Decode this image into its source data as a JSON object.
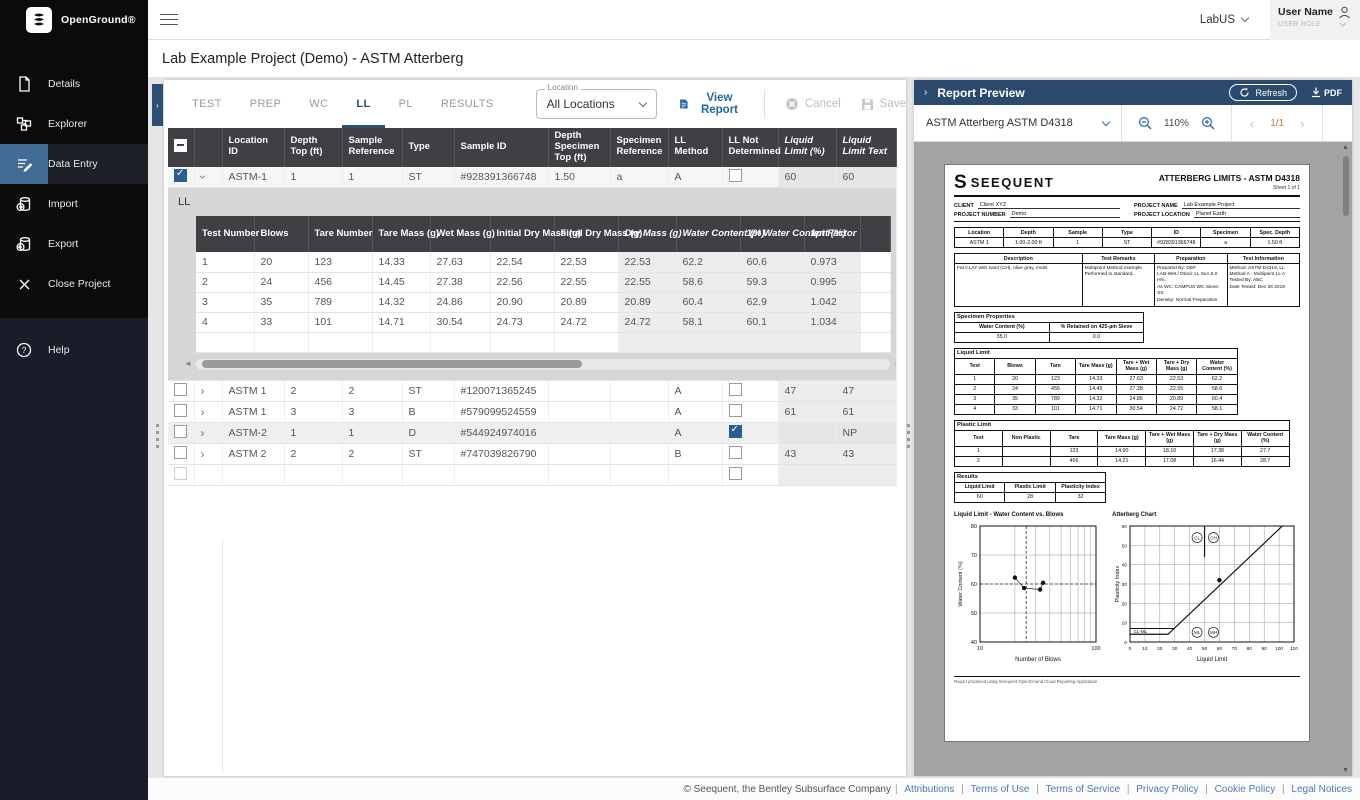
{
  "colors": {
    "sidebar": "#0b0b0c",
    "accent": "#2c4a6e",
    "selection": "#2e5f8c",
    "active_icon_bg": "#426b94",
    "link": "#4a7ab5",
    "header_gray": "#3f3f44"
  },
  "topbar": {
    "brand": "OpenGround®",
    "lab": "LabUS",
    "user_name": "User Name",
    "user_role": "USER ROLE"
  },
  "title": "Lab Example Project (Demo) - ASTM Atterberg",
  "sidebar": {
    "items": [
      {
        "label": "Details"
      },
      {
        "label": "Explorer"
      },
      {
        "label": "Data Entry"
      },
      {
        "label": "Import"
      },
      {
        "label": "Export"
      },
      {
        "label": "Close Project"
      }
    ],
    "help": "Help"
  },
  "tabs": {
    "items": [
      "TEST",
      "PREP",
      "WC",
      "LL",
      "PL",
      "RESULTS"
    ],
    "active": "LL"
  },
  "toolbar": {
    "location_label": "Location",
    "location_value": "All Locations",
    "view_report": "View Report",
    "cancel": "Cancel",
    "save": "Save"
  },
  "grid": {
    "columns": [
      {
        "label": "Location ID"
      },
      {
        "label": "Depth Top (ft)"
      },
      {
        "label": "Sample Reference"
      },
      {
        "label": "Type"
      },
      {
        "label": "Sample ID"
      },
      {
        "label": "Depth Specimen Top (ft)"
      },
      {
        "label": "Specimen Reference"
      },
      {
        "label": "LL Method"
      },
      {
        "label": "LL Not Determined"
      },
      {
        "label": "Liquid Limit (%)",
        "calc": true
      },
      {
        "label": "Liquid Limit Text",
        "calc": true
      }
    ],
    "rows": [
      {
        "selected": true,
        "expander": "open",
        "ll_nd": false,
        "values": [
          "ASTM-1",
          "1",
          "1",
          "ST",
          "#928391366748",
          "1.50",
          "a",
          "A",
          "60",
          "60"
        ]
      },
      {
        "selected": false,
        "expander": "closed",
        "ll_nd": false,
        "values": [
          "ASTM 1",
          "2",
          "2",
          "ST",
          "#120071365245",
          "",
          "",
          "A",
          "47",
          "47"
        ]
      },
      {
        "selected": false,
        "expander": "closed",
        "ll_nd": false,
        "values": [
          "ASTM 1",
          "3",
          "3",
          "B",
          "#579099524559",
          "",
          "",
          "A",
          "61",
          "61"
        ]
      },
      {
        "selected": false,
        "expander": "closed",
        "shade": true,
        "ll_nd": true,
        "values": [
          "ASTM-2",
          "1",
          "1",
          "D",
          "#544924974016",
          "",
          "",
          "A",
          "",
          "NP"
        ]
      },
      {
        "selected": false,
        "expander": "closed",
        "ll_nd": false,
        "values": [
          "ASTM 2",
          "2",
          "2",
          "ST",
          "#747039826790",
          "",
          "",
          "B",
          "43",
          "43"
        ]
      },
      {
        "selected": false,
        "expander": null,
        "ll_nd": false,
        "empty": true,
        "values": [
          "",
          "",
          "",
          "",
          "",
          "",
          "",
          "",
          "",
          ""
        ]
      }
    ]
  },
  "subgrid": {
    "title": "LL",
    "columns": [
      {
        "label": "Test Number"
      },
      {
        "label": "Blows"
      },
      {
        "label": "Tare Number"
      },
      {
        "label": "Tare Mass (g)"
      },
      {
        "label": "Wet Mass (g)"
      },
      {
        "label": "Initial Dry Mass (g)"
      },
      {
        "label": "Final Dry Mass (g)"
      },
      {
        "label": "Dry Mass (g)",
        "calc": true
      },
      {
        "label": "Water Content (%)",
        "calc": true
      },
      {
        "label": "1pt Water Content (%)",
        "calc": true
      },
      {
        "label": "1pt Factor",
        "calc": true
      }
    ],
    "rows": [
      [
        "1",
        "20",
        "123",
        "14.33",
        "27.63",
        "22.54",
        "22.53",
        "22.53",
        "62.2",
        "60.6",
        "0.973"
      ],
      [
        "2",
        "24",
        "456",
        "14.45",
        "27.38",
        "22.56",
        "22.55",
        "22.55",
        "58.6",
        "59.3",
        "0.995"
      ],
      [
        "3",
        "35",
        "789",
        "14.32",
        "24.86",
        "20.90",
        "20.89",
        "20.89",
        "60.4",
        "62.9",
        "1.042"
      ],
      [
        "4",
        "33",
        "101",
        "14.71",
        "30.54",
        "24.73",
        "24.72",
        "24.72",
        "58.1",
        "60.1",
        "1.034"
      ],
      [
        "",
        "",
        "",
        "",
        "",
        "",
        "",
        "",
        "",
        "",
        ""
      ]
    ]
  },
  "report_panel": {
    "title": "Report Preview",
    "refresh": "Refresh",
    "pdf": "PDF",
    "template": "ASTM Atterberg   ASTM D4318",
    "zoom": "110%",
    "page": "1/1"
  },
  "report": {
    "brand": "SEEQUENT",
    "title": "ATTERBERG LIMITS - ASTM D4318",
    "sheet": "Sheet 1 of 1",
    "client_label": "CLIENT",
    "client": "Client XYZ",
    "project_number_label": "PROJECT NUMBER",
    "project_number": "Demo",
    "project_name_label": "PROJECT NAME",
    "project_name": "Lab Example Project",
    "project_location_label": "PROJECT LOCATION",
    "project_location": "Planet Earth",
    "summary": {
      "headers": [
        "Location",
        "Depth",
        "Sample",
        "Type",
        "ID",
        "Specimen",
        "Spec. Depth"
      ],
      "row": [
        "ASTM 1",
        "1.00-2.00 ft",
        "1",
        "ST",
        "#928391366748",
        "a",
        "1.50 ft"
      ]
    },
    "description": {
      "headers": [
        "Description",
        "Test Remarks",
        "Preparation",
        "Test Information"
      ],
      "cells": [
        [
          "Fat CLAY with sand (CH), olive gray, moist"
        ],
        [
          "Multipoint Method example.",
          "Performed to standard."
        ],
        [
          "Prepared By: DEF",
          "LAB-Wet / Dried: LL SxA 5.0 Hrs.",
          "As WC: CAMPUS WC Sieve: SS",
          "Density: Normal Preparation"
        ],
        [
          "Method: ASTM D4318, LL",
          "Method A - Multipoint LL A",
          "Tested By: ABC",
          "Date Tested: Dec 26 2019"
        ]
      ]
    },
    "specimen": {
      "title": "Specimen Properties",
      "headers": [
        "Water Content (%)",
        "% Retained on 425-µm Sieve"
      ],
      "values": [
        "35.0",
        "0.0"
      ]
    },
    "liquid_limit": {
      "title": "Liquid Limit",
      "headers": [
        "Test",
        "Blows",
        "Tare",
        "Tare Mass (g)",
        "Tare + Wet Mass (g)",
        "Tare + Dry Mass (g)",
        "Water Content (%)"
      ],
      "rows": [
        [
          "1",
          "20",
          "123",
          "14.33",
          "27.63",
          "22.53",
          "62.2"
        ],
        [
          "2",
          "24",
          "456",
          "14.45",
          "27.38",
          "22.55",
          "58.6"
        ],
        [
          "3",
          "35",
          "789",
          "14.32",
          "24.86",
          "20.89",
          "60.4"
        ],
        [
          "4",
          "33",
          "101",
          "14.71",
          "30.54",
          "24.72",
          "58.1"
        ]
      ]
    },
    "plastic_limit": {
      "title": "Plastic Limit",
      "headers": [
        "Test",
        "Non Plastic",
        "Tare",
        "Tare Mass (g)",
        "Tare + Wet Mass (g)",
        "Tare + Dry Mass (g)",
        "Water Content (%)"
      ],
      "rows": [
        [
          "1",
          "",
          "123",
          "14.90",
          "18.10",
          "17.38",
          "27.7"
        ],
        [
          "2",
          "",
          "456",
          "14.21",
          "17.08",
          "16.44",
          "28.7"
        ]
      ]
    },
    "results": {
      "title": "Results",
      "headers": [
        "Liquid Limit",
        "Plastic Limit",
        "Plasticity Index"
      ],
      "values": [
        "60",
        "28",
        "32"
      ]
    },
    "footnote": "Report produced using Seequent OpenGround Cloud Reporting Application"
  },
  "chart_data": [
    {
      "type": "scatter",
      "title": "Liquid Limit - Water Content vs. Blows",
      "xlabel": "Number of Blows",
      "ylabel": "Water Content (%)",
      "xscale": "log",
      "xlim": [
        10,
        100
      ],
      "ylim": [
        40,
        80
      ],
      "yticks": [
        40,
        50,
        60,
        70,
        80
      ],
      "xticks_labeled": [
        10,
        100
      ],
      "x": [
        20,
        24,
        33,
        35
      ],
      "y": [
        62.2,
        58.6,
        58.1,
        60.4
      ],
      "vline_dashed": 25,
      "hline_dashed": 60,
      "grid": true,
      "legend": "none"
    },
    {
      "type": "scatter",
      "title": "Atterberg Chart",
      "xlabel": "Liquid Limit",
      "ylabel": "Plasticity Index",
      "xlim": [
        0,
        110
      ],
      "ylim": [
        0,
        60
      ],
      "xtick_step": 10,
      "ytick_step": 10,
      "x": [
        60
      ],
      "y": [
        32
      ],
      "a_line": [
        [
          0,
          4
        ],
        [
          25.5,
          4
        ],
        [
          102.2,
          60
        ]
      ],
      "clml_line": [
        [
          0,
          7
        ],
        [
          29.6,
          7
        ]
      ],
      "divider_x": 50,
      "divider_y_from": 60,
      "divider_y_to": 44,
      "zone_labels": [
        {
          "t": "CL",
          "x": 45,
          "y": 54,
          "circle": true
        },
        {
          "t": "CH",
          "x": 56,
          "y": 54,
          "circle": true
        },
        {
          "t": "ML",
          "x": 45,
          "y": 5,
          "circle": true
        },
        {
          "t": "MH",
          "x": 56,
          "y": 5,
          "circle": true
        },
        {
          "t": "CL-ML",
          "x": 7,
          "y": 5.5,
          "circle": false
        }
      ],
      "grid": true,
      "legend": "none"
    }
  ],
  "footer": {
    "copyright": "© Seequent, the Bentley Subsurface Company",
    "links": [
      "Attributions",
      "Terms of Use",
      "Terms of Service",
      "Privacy Policy",
      "Cookie Policy",
      "Legal Notices"
    ]
  }
}
